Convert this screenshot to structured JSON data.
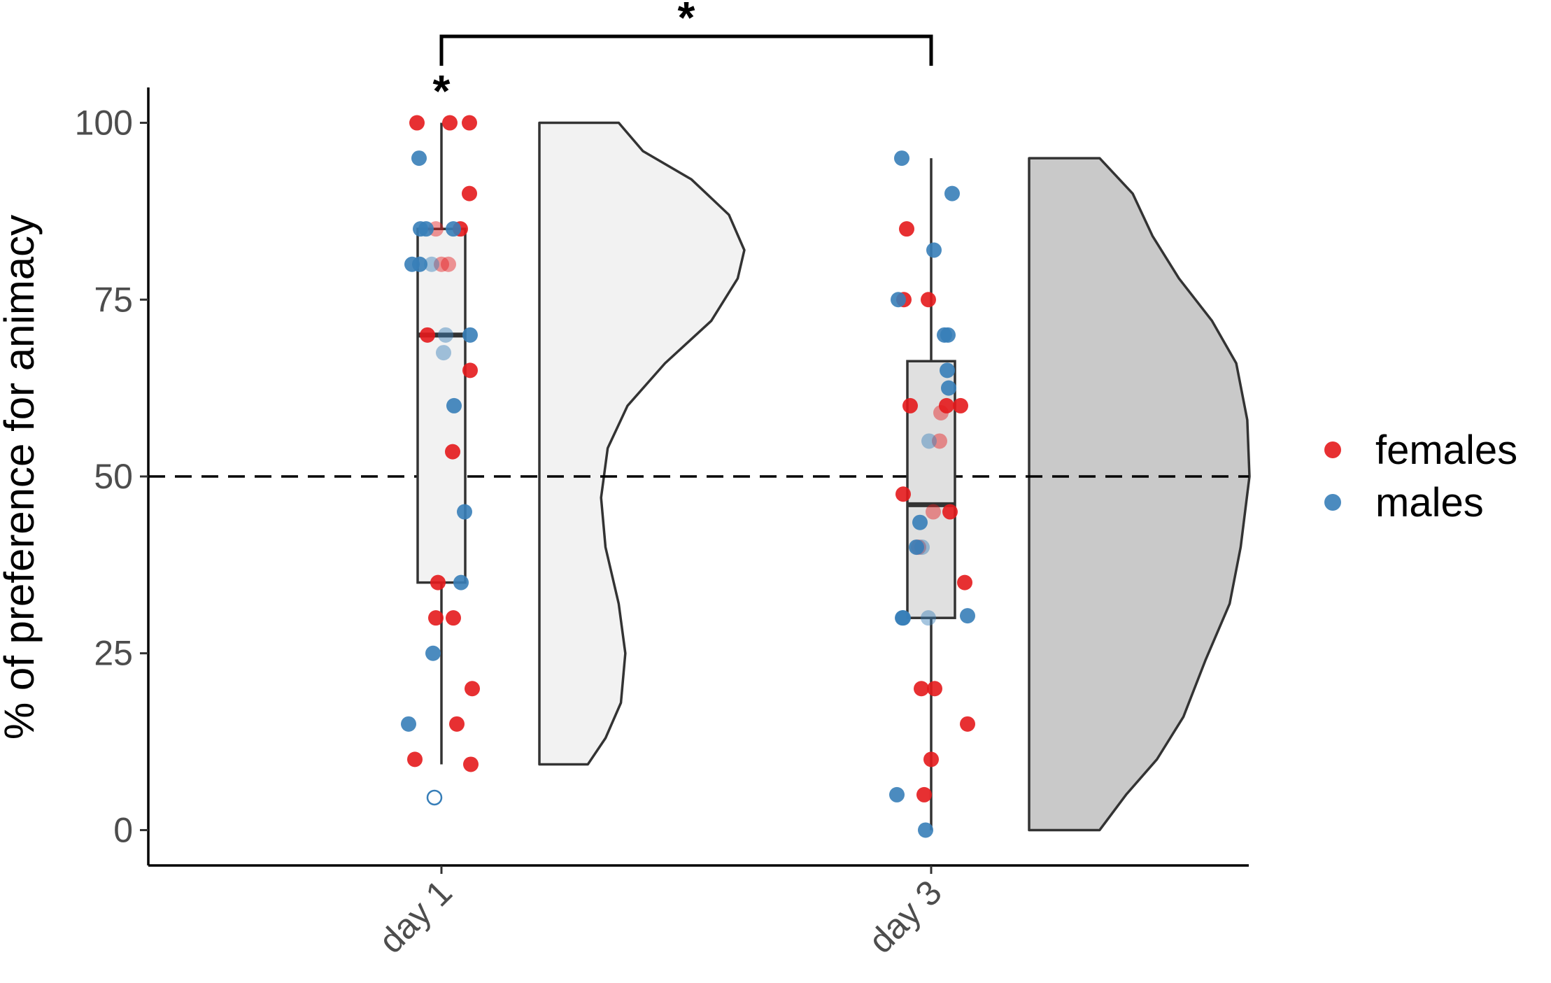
{
  "chart_data": {
    "type": "raincloud",
    "title": "",
    "xlabel": "",
    "ylabel": "% of preference for animacy",
    "categories": [
      "day 1",
      "day 3"
    ],
    "ylim": [
      -5,
      105
    ],
    "yticks": [
      0,
      25,
      50,
      75,
      100
    ],
    "yticklabels": [
      "0",
      "25",
      "50",
      "75",
      "100"
    ],
    "reference_line": {
      "y": 50,
      "style": "dashed"
    },
    "legend": {
      "placement": "right",
      "entries": [
        "females",
        "males"
      ]
    },
    "colors": {
      "females": "#e41a1c",
      "males": "#377eb8",
      "day1_fill": "#f2f2f2",
      "day3_fill": "#c9c9c9",
      "box_day3_fill": "#e0e0e0"
    },
    "boxes": [
      {
        "category": "day 1",
        "min": 9.3,
        "q1": 35,
        "median": 70,
        "q3": 85,
        "max": 100
      },
      {
        "category": "day 3",
        "min": 0,
        "q1": 30,
        "median": 46,
        "q3": 66.3,
        "max": 95
      }
    ],
    "violins": [
      {
        "category": "day 1",
        "min": 9.3,
        "max": 100,
        "density": [
          [
            9.3,
            0.22
          ],
          [
            13,
            0.3
          ],
          [
            18,
            0.37
          ],
          [
            25,
            0.39
          ],
          [
            32,
            0.36
          ],
          [
            40,
            0.3
          ],
          [
            47,
            0.28
          ],
          [
            54,
            0.31
          ],
          [
            60,
            0.4
          ],
          [
            66,
            0.57
          ],
          [
            72,
            0.78
          ],
          [
            78,
            0.9
          ],
          [
            82,
            0.93
          ],
          [
            87,
            0.86
          ],
          [
            92,
            0.69
          ],
          [
            96,
            0.47
          ],
          [
            100,
            0.36
          ]
        ]
      },
      {
        "category": "day 3",
        "min": 0,
        "max": 95,
        "density": [
          [
            0,
            0.32
          ],
          [
            5,
            0.44
          ],
          [
            10,
            0.58
          ],
          [
            16,
            0.7
          ],
          [
            24,
            0.8
          ],
          [
            32,
            0.91
          ],
          [
            40,
            0.96
          ],
          [
            50,
            1.0
          ],
          [
            58,
            0.99
          ],
          [
            66,
            0.94
          ],
          [
            72,
            0.83
          ],
          [
            78,
            0.68
          ],
          [
            84,
            0.56
          ],
          [
            90,
            0.47
          ],
          [
            95,
            0.32
          ]
        ]
      }
    ],
    "series": [
      {
        "name": "females",
        "points": [
          {
            "x": "day 1",
            "jitter": -0.35,
            "y": 100
          },
          {
            "x": "day 1",
            "jitter": 0.12,
            "y": 100
          },
          {
            "x": "day 1",
            "jitter": 0.4,
            "y": 100
          },
          {
            "x": "day 1",
            "jitter": 0.4,
            "y": 90
          },
          {
            "x": "day 1",
            "jitter": -0.08,
            "y": 85,
            "faded": true
          },
          {
            "x": "day 1",
            "jitter": 0.27,
            "y": 85
          },
          {
            "x": "day 1",
            "jitter": 0.0,
            "y": 80,
            "faded": true
          },
          {
            "x": "day 1",
            "jitter": 0.1,
            "y": 80,
            "faded": true
          },
          {
            "x": "day 1",
            "jitter": -0.2,
            "y": 70
          },
          {
            "x": "day 1",
            "jitter": 0.41,
            "y": 65
          },
          {
            "x": "day 1",
            "jitter": 0.16,
            "y": 53.5
          },
          {
            "x": "day 1",
            "jitter": -0.05,
            "y": 35
          },
          {
            "x": "day 1",
            "jitter": -0.08,
            "y": 30
          },
          {
            "x": "day 1",
            "jitter": 0.17,
            "y": 30
          },
          {
            "x": "day 1",
            "jitter": 0.44,
            "y": 20
          },
          {
            "x": "day 1",
            "jitter": 0.22,
            "y": 15
          },
          {
            "x": "day 1",
            "jitter": -0.38,
            "y": 10
          },
          {
            "x": "day 1",
            "jitter": 0.42,
            "y": 9.3
          },
          {
            "x": "day 3",
            "jitter": -0.35,
            "y": 85
          },
          {
            "x": "day 3",
            "jitter": -0.39,
            "y": 75
          },
          {
            "x": "day 3",
            "jitter": -0.04,
            "y": 75
          },
          {
            "x": "day 3",
            "jitter": -0.3,
            "y": 60
          },
          {
            "x": "day 3",
            "jitter": 0.22,
            "y": 60
          },
          {
            "x": "day 3",
            "jitter": 0.42,
            "y": 60
          },
          {
            "x": "day 3",
            "jitter": 0.14,
            "y": 59,
            "faded": true
          },
          {
            "x": "day 3",
            "jitter": 0.12,
            "y": 55,
            "faded": true
          },
          {
            "x": "day 3",
            "jitter": -0.4,
            "y": 47.5
          },
          {
            "x": "day 3",
            "jitter": 0.03,
            "y": 45,
            "faded": true
          },
          {
            "x": "day 3",
            "jitter": 0.27,
            "y": 45
          },
          {
            "x": "day 3",
            "jitter": -0.18,
            "y": 40,
            "faded": true
          },
          {
            "x": "day 3",
            "jitter": 0.48,
            "y": 35
          },
          {
            "x": "day 3",
            "jitter": -0.14,
            "y": 20
          },
          {
            "x": "day 3",
            "jitter": 0.05,
            "y": 20
          },
          {
            "x": "day 3",
            "jitter": 0.52,
            "y": 15
          },
          {
            "x": "day 3",
            "jitter": 0.0,
            "y": 10
          },
          {
            "x": "day 3",
            "jitter": -0.1,
            "y": 5
          }
        ]
      },
      {
        "name": "males",
        "points": [
          {
            "x": "day 1",
            "jitter": -0.32,
            "y": 95
          },
          {
            "x": "day 1",
            "jitter": -0.3,
            "y": 85
          },
          {
            "x": "day 1",
            "jitter": -0.22,
            "y": 85
          },
          {
            "x": "day 1",
            "jitter": 0.17,
            "y": 85
          },
          {
            "x": "day 1",
            "jitter": -0.42,
            "y": 80
          },
          {
            "x": "day 1",
            "jitter": -0.31,
            "y": 80
          },
          {
            "x": "day 1",
            "jitter": -0.14,
            "y": 80,
            "faded": true
          },
          {
            "x": "day 1",
            "jitter": 0.06,
            "y": 70,
            "faded": true
          },
          {
            "x": "day 1",
            "jitter": 0.41,
            "y": 70
          },
          {
            "x": "day 1",
            "jitter": 0.03,
            "y": 67.5,
            "faded": true
          },
          {
            "x": "day 1",
            "jitter": 0.18,
            "y": 60
          },
          {
            "x": "day 1",
            "jitter": 0.33,
            "y": 45
          },
          {
            "x": "day 1",
            "jitter": 0.28,
            "y": 35
          },
          {
            "x": "day 1",
            "jitter": -0.12,
            "y": 25
          },
          {
            "x": "day 1",
            "jitter": -0.47,
            "y": 15
          },
          {
            "x": "day 1",
            "jitter": -0.1,
            "y": 4.6,
            "outlier": true
          },
          {
            "x": "day 3",
            "jitter": -0.42,
            "y": 95
          },
          {
            "x": "day 3",
            "jitter": 0.3,
            "y": 90
          },
          {
            "x": "day 3",
            "jitter": 0.04,
            "y": 82
          },
          {
            "x": "day 3",
            "jitter": -0.47,
            "y": 75
          },
          {
            "x": "day 3",
            "jitter": 0.19,
            "y": 70
          },
          {
            "x": "day 3",
            "jitter": 0.24,
            "y": 70
          },
          {
            "x": "day 3",
            "jitter": 0.23,
            "y": 65
          },
          {
            "x": "day 3",
            "jitter": 0.25,
            "y": 62.5
          },
          {
            "x": "day 3",
            "jitter": -0.03,
            "y": 55,
            "faded": true
          },
          {
            "x": "day 3",
            "jitter": -0.16,
            "y": 43.5
          },
          {
            "x": "day 3",
            "jitter": -0.21,
            "y": 40
          },
          {
            "x": "day 3",
            "jitter": -0.13,
            "y": 40,
            "faded": true
          },
          {
            "x": "day 3",
            "jitter": -0.41,
            "y": 30
          },
          {
            "x": "day 3",
            "jitter": -0.4,
            "y": 30
          },
          {
            "x": "day 3",
            "jitter": -0.04,
            "y": 30,
            "faded": true
          },
          {
            "x": "day 3",
            "jitter": 0.52,
            "y": 30.3
          },
          {
            "x": "day 3",
            "jitter": -0.49,
            "y": 5
          },
          {
            "x": "day 3",
            "jitter": -0.08,
            "y": 0
          }
        ]
      }
    ],
    "significance": {
      "within": [
        {
          "category": "day 1",
          "symbol": "*"
        }
      ],
      "between": {
        "from": "day 1",
        "to": "day 3",
        "symbol": "*"
      }
    }
  }
}
